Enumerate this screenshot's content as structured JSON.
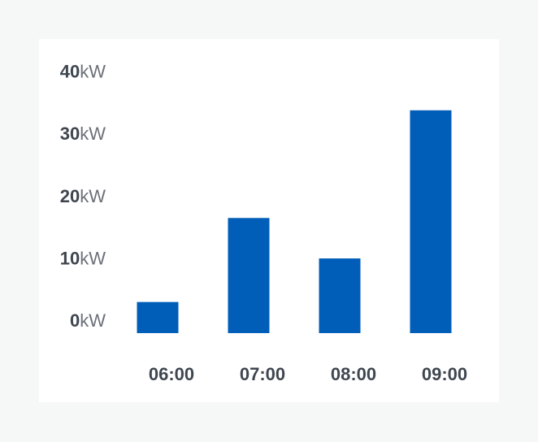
{
  "chart_data": {
    "type": "bar",
    "categories": [
      "06:00",
      "07:00",
      "08:00",
      "09:00"
    ],
    "values": [
      5,
      18.5,
      12,
      35.8
    ],
    "unit": "kW",
    "yticks": [
      0,
      10,
      20,
      30,
      40
    ],
    "ylim": [
      0,
      40
    ],
    "grid": false,
    "colors": {
      "bar": "#005eb8",
      "background": "#f6f7f7",
      "card": "#ffffff"
    }
  }
}
